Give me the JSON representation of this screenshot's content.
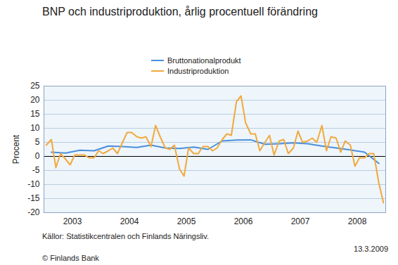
{
  "chart_data": {
    "type": "line",
    "title": "BNP och industriproduktion, årlig procentuell förändring",
    "y_label": "Procent",
    "source": "Källor: Statistikcentralen och Finlands Näringsliv.",
    "copyright": "© Finlands Bank",
    "date": "13.3.2009",
    "xlim": [
      2003,
      2009
    ],
    "xticks": [
      {
        "value": 2003.5,
        "label": "2003"
      },
      {
        "value": 2004.5,
        "label": "2004"
      },
      {
        "value": 2005.5,
        "label": "2005"
      },
      {
        "value": 2006.5,
        "label": "2006"
      },
      {
        "value": 2007.5,
        "label": "2007"
      },
      {
        "value": 2008.5,
        "label": "2008"
      }
    ],
    "ylim": [
      -20,
      25
    ],
    "yticks": [
      -20,
      -15,
      -10,
      -5,
      0,
      5,
      10,
      15,
      20,
      25
    ],
    "grid": true,
    "legend": "top",
    "series": [
      {
        "name": "Bruttonationalprodukt",
        "color": "#4a8fdc",
        "x": [
          2003.13,
          2003.38,
          2003.63,
          2003.88,
          2004.13,
          2004.38,
          2004.63,
          2004.88,
          2005.13,
          2005.38,
          2005.63,
          2005.88,
          2006.13,
          2006.38,
          2006.63,
          2006.88,
          2007.13,
          2007.38,
          2007.63,
          2007.88,
          2008.13,
          2008.38,
          2008.63,
          2008.88
        ],
        "values": [
          1.5,
          1.2,
          2.2,
          2.0,
          3.7,
          3.5,
          3.2,
          4.0,
          3.0,
          2.8,
          3.3,
          2.5,
          5.5,
          5.8,
          5.9,
          4.3,
          4.5,
          4.8,
          4.5,
          3.7,
          3.0,
          2.3,
          1.5,
          -2.5
        ]
      },
      {
        "name": "Industriproduktion",
        "color": "#f2a93b",
        "x": [
          2003.04,
          2003.13,
          2003.21,
          2003.29,
          2003.38,
          2003.46,
          2003.54,
          2003.63,
          2003.71,
          2003.79,
          2003.88,
          2003.96,
          2004.04,
          2004.13,
          2004.21,
          2004.29,
          2004.38,
          2004.46,
          2004.54,
          2004.63,
          2004.71,
          2004.79,
          2004.88,
          2004.96,
          2005.04,
          2005.13,
          2005.21,
          2005.29,
          2005.38,
          2005.46,
          2005.54,
          2005.63,
          2005.71,
          2005.79,
          2005.88,
          2005.96,
          2006.04,
          2006.13,
          2006.21,
          2006.29,
          2006.38,
          2006.46,
          2006.54,
          2006.63,
          2006.71,
          2006.79,
          2006.88,
          2006.96,
          2007.04,
          2007.13,
          2007.21,
          2007.29,
          2007.38,
          2007.46,
          2007.54,
          2007.63,
          2007.71,
          2007.79,
          2007.88,
          2007.96,
          2008.04,
          2008.13,
          2008.21,
          2008.29,
          2008.38,
          2008.46,
          2008.54,
          2008.63,
          2008.71,
          2008.79,
          2008.88,
          2008.96
        ],
        "values": [
          4,
          6,
          -4,
          1,
          -1,
          -3,
          0.5,
          0.5,
          0.5,
          -0.5,
          -0.5,
          2,
          1,
          2,
          3,
          1,
          5,
          8.5,
          8.5,
          7,
          6.5,
          7,
          3.5,
          11,
          7,
          3,
          2.5,
          4,
          -4.5,
          -7,
          3,
          1,
          1,
          3.5,
          3.5,
          2,
          3,
          6,
          8,
          7.5,
          19.5,
          21.5,
          12,
          8,
          8,
          2,
          5,
          7.5,
          0.5,
          5.5,
          6,
          1,
          3,
          9,
          5,
          5.5,
          6.5,
          5,
          11,
          2,
          7,
          6.5,
          1.5,
          5.5,
          4,
          -3.5,
          -0.5,
          -0.5,
          1,
          1,
          -9.5,
          -16.5
        ]
      }
    ]
  }
}
